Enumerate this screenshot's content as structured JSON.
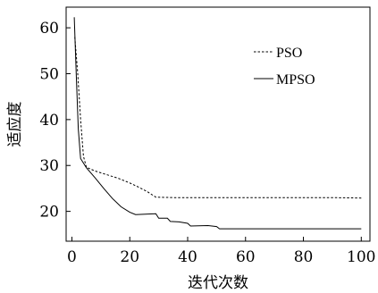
{
  "chart_data": {
    "type": "line",
    "title": "",
    "xlabel": "迭代次数",
    "ylabel": "适应度",
    "xlim": [
      -2,
      103
    ],
    "ylim": [
      13.5,
      64.5
    ],
    "x_ticks": [
      0,
      20,
      40,
      60,
      80,
      100
    ],
    "y_ticks": [
      20,
      30,
      40,
      50,
      60
    ],
    "legend_position": "top-right",
    "grid": false,
    "series": [
      {
        "name": "PSO",
        "style": "dashed",
        "points": [
          [
            1,
            58.0
          ],
          [
            2,
            50.0
          ],
          [
            3,
            40.0
          ],
          [
            4,
            32.0
          ],
          [
            5,
            29.6
          ],
          [
            8,
            28.8
          ],
          [
            12,
            28.0
          ],
          [
            16,
            27.2
          ],
          [
            20,
            26.2
          ],
          [
            23,
            25.3
          ],
          [
            26,
            24.3
          ],
          [
            28,
            23.5
          ],
          [
            29,
            23.1
          ],
          [
            35,
            23.0
          ],
          [
            50,
            23.0
          ],
          [
            70,
            23.0
          ],
          [
            90,
            23.0
          ],
          [
            100,
            22.9
          ]
        ]
      },
      {
        "name": "MPSO",
        "style": "solid",
        "points": [
          [
            0.8,
            62.3
          ],
          [
            1.5,
            50.0
          ],
          [
            2.2,
            38.0
          ],
          [
            3,
            31.5
          ],
          [
            5,
            29.5
          ],
          [
            8,
            27.3
          ],
          [
            11,
            25.0
          ],
          [
            14,
            22.8
          ],
          [
            17,
            21.0
          ],
          [
            20,
            19.8
          ],
          [
            22,
            19.3
          ],
          [
            29,
            19.5
          ],
          [
            30,
            18.5
          ],
          [
            33,
            18.5
          ],
          [
            34,
            17.8
          ],
          [
            37,
            17.7
          ],
          [
            40,
            17.4
          ],
          [
            41,
            16.8
          ],
          [
            47,
            16.9
          ],
          [
            50,
            16.7
          ],
          [
            51,
            16.2
          ],
          [
            70,
            16.2
          ],
          [
            100,
            16.2
          ]
        ]
      }
    ]
  }
}
